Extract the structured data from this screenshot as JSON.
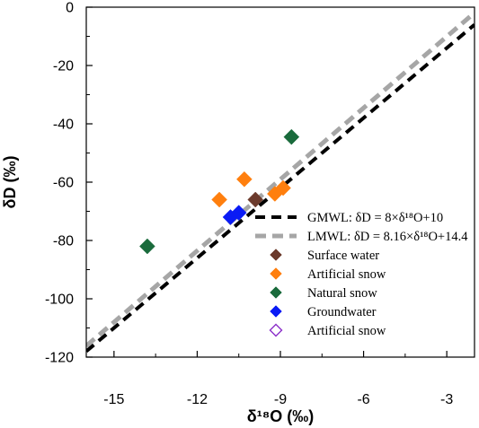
{
  "chart_data": {
    "type": "scatter",
    "title": "",
    "xlabel": "δ¹⁸O (‰)",
    "ylabel": "δD (‰)",
    "xlim": [
      -16,
      -2
    ],
    "ylim": [
      -120,
      0
    ],
    "x_ticks": [
      -15,
      -12,
      -9,
      -6,
      -3
    ],
    "y_ticks": [
      0,
      -20,
      -40,
      -60,
      -80,
      -100,
      -120
    ],
    "grid": false,
    "legend_position": "bottom-right",
    "lines": [
      {
        "name": "GMWL: δD = 8×δ¹⁸O+10",
        "slope": 8,
        "intercept": 10,
        "color": "#000000",
        "style": "dashed"
      },
      {
        "name": "LMWL: δD = 8.16×δ¹⁸O+14.4",
        "slope": 8.16,
        "intercept": 14.4,
        "color": "#a6a6a6",
        "style": "dashed"
      }
    ],
    "series": [
      {
        "name": "Surface water",
        "color": "#6b3a2c",
        "marker": "diamond-filled",
        "points": [
          [
            -9.9,
            -66
          ]
        ]
      },
      {
        "name": "Artificial snow",
        "color": "#ff7f0e",
        "marker": "diamond-filled",
        "points": [
          [
            -11.2,
            -66
          ],
          [
            -10.3,
            -59
          ],
          [
            -9.2,
            -64
          ],
          [
            -8.9,
            -62
          ]
        ]
      },
      {
        "name": "Natural snow",
        "color": "#1a6b3c",
        "marker": "diamond-filled",
        "points": [
          [
            -13.8,
            -82
          ],
          [
            -8.6,
            -44.5
          ]
        ]
      },
      {
        "name": "Groundwater",
        "color": "#0a1bf5",
        "marker": "diamond-filled",
        "points": [
          [
            -10.8,
            -72
          ],
          [
            -10.5,
            -70.5
          ]
        ]
      },
      {
        "name": "Artificial snow",
        "color": "#8b2fc9",
        "marker": "diamond-open",
        "points": []
      }
    ]
  }
}
